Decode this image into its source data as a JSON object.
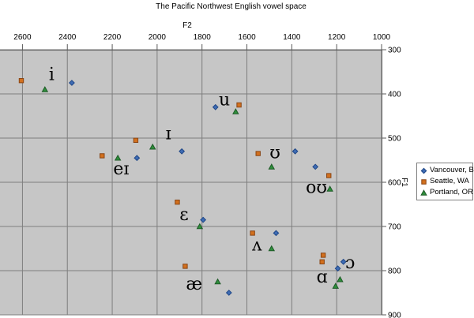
{
  "chart_data": {
    "type": "scatter",
    "title": "The Pacific Northwest English vowel space",
    "xlabel": "F2",
    "ylabel": "F1",
    "x_ticks": [
      2600,
      2400,
      2200,
      2000,
      1800,
      1600,
      1400,
      1200,
      1000
    ],
    "y_ticks": [
      300,
      400,
      500,
      600,
      700,
      800,
      900
    ],
    "xlim": [
      2700,
      1000
    ],
    "ylim": [
      300,
      900
    ],
    "x_axis_reversed": true,
    "y_axis_inverted": true,
    "grid": true,
    "legend_position": "right",
    "series": [
      {
        "name": "Vancouver, BC",
        "marker": "diamond",
        "color": "#3f6cb4",
        "stroke": "#1f4787",
        "points": [
          {
            "vowel": "i",
            "f2": 2380,
            "f1": 375
          },
          {
            "vowel": "ɪ",
            "f2": 1890,
            "f1": 530
          },
          {
            "vowel": "eɪ",
            "f2": 2090,
            "f1": 545
          },
          {
            "vowel": "ɛ",
            "f2": 1795,
            "f1": 685
          },
          {
            "vowel": "æ",
            "f2": 1680,
            "f1": 850
          },
          {
            "vowel": "u",
            "f2": 1740,
            "f1": 430
          },
          {
            "vowel": "ʊ",
            "f2": 1385,
            "f1": 530
          },
          {
            "vowel": "oʊ",
            "f2": 1295,
            "f1": 565
          },
          {
            "vowel": "ʌ",
            "f2": 1470,
            "f1": 715
          },
          {
            "vowel": "ɔ",
            "f2": 1170,
            "f1": 780
          },
          {
            "vowel": "ɑ",
            "f2": 1195,
            "f1": 795
          }
        ]
      },
      {
        "name": "Seattle, WA",
        "marker": "square",
        "color": "#d2701e",
        "stroke": "#8a4513",
        "points": [
          {
            "vowel": "i",
            "f2": 2605,
            "f1": 370
          },
          {
            "vowel": "ɪ",
            "f2": 2095,
            "f1": 505
          },
          {
            "vowel": "eɪ",
            "f2": 2245,
            "f1": 540
          },
          {
            "vowel": "ɛ",
            "f2": 1910,
            "f1": 645
          },
          {
            "vowel": "æ",
            "f2": 1875,
            "f1": 790
          },
          {
            "vowel": "u",
            "f2": 1635,
            "f1": 425
          },
          {
            "vowel": "ʊ",
            "f2": 1550,
            "f1": 535
          },
          {
            "vowel": "oʊ",
            "f2": 1235,
            "f1": 585
          },
          {
            "vowel": "ʌ",
            "f2": 1575,
            "f1": 715
          },
          {
            "vowel": "ɔ",
            "f2": 1260,
            "f1": 765
          },
          {
            "vowel": "ɑ",
            "f2": 1265,
            "f1": 780
          }
        ]
      },
      {
        "name": "Portland, OR",
        "marker": "triangle",
        "color": "#2f8f3c",
        "stroke": "#1d5a26",
        "points": [
          {
            "vowel": "i",
            "f2": 2500,
            "f1": 390
          },
          {
            "vowel": "ɪ",
            "f2": 2020,
            "f1": 520
          },
          {
            "vowel": "eɪ",
            "f2": 2175,
            "f1": 545
          },
          {
            "vowel": "ɛ",
            "f2": 1810,
            "f1": 700
          },
          {
            "vowel": "æ",
            "f2": 1730,
            "f1": 825
          },
          {
            "vowel": "u",
            "f2": 1650,
            "f1": 440
          },
          {
            "vowel": "ʊ",
            "f2": 1490,
            "f1": 565
          },
          {
            "vowel": "oʊ",
            "f2": 1230,
            "f1": 615
          },
          {
            "vowel": "ʌ",
            "f2": 1490,
            "f1": 750
          },
          {
            "vowel": "ɔ",
            "f2": 1185,
            "f1": 820
          },
          {
            "vowel": "ɑ",
            "f2": 1205,
            "f1": 835
          }
        ]
      }
    ],
    "point_labels": [
      {
        "text": "i",
        "f2": 2470,
        "f1": 356
      },
      {
        "text": "ɪ",
        "f2": 1950,
        "f1": 490
      },
      {
        "text": "eɪ",
        "f2": 2160,
        "f1": 570
      },
      {
        "text": "u",
        "f2": 1700,
        "f1": 413
      },
      {
        "text": "ʊ",
        "f2": 1475,
        "f1": 533
      },
      {
        "text": "oʊ",
        "f2": 1290,
        "f1": 612
      },
      {
        "text": "ɛ",
        "f2": 1880,
        "f1": 673
      },
      {
        "text": "ʌ",
        "f2": 1555,
        "f1": 742
      },
      {
        "text": "æ",
        "f2": 1835,
        "f1": 830
      },
      {
        "text": "ɑ",
        "f2": 1265,
        "f1": 814
      },
      {
        "text": "ɔ",
        "f2": 1140,
        "f1": 782
      }
    ]
  }
}
